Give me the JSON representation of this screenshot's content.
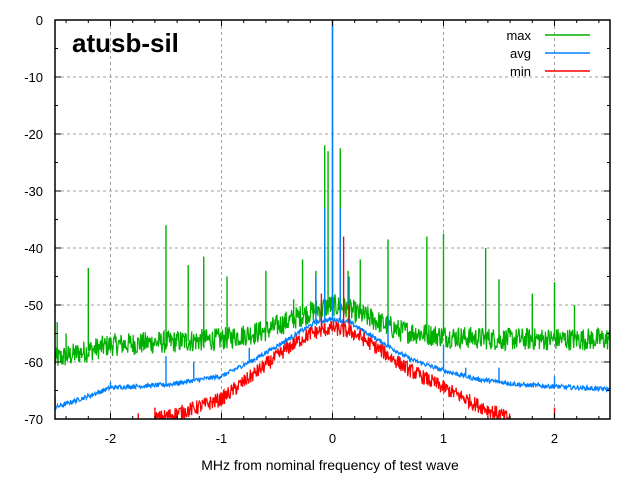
{
  "chart_data": {
    "type": "line",
    "title": "atusb-sil",
    "xlabel": "MHz from nominal frequency of test wave",
    "ylabel": "",
    "xlim": [
      -2.5,
      2.5
    ],
    "ylim": [
      -70,
      0
    ],
    "x_ticks": [
      -2,
      -1,
      0,
      1,
      2
    ],
    "y_ticks": [
      0,
      -10,
      -20,
      -30,
      -40,
      -50,
      -60,
      -70
    ],
    "grid": true,
    "legend_position": "top-right",
    "series": [
      {
        "name": "max",
        "color": "#00b000",
        "baseline": [
          [
            -2.5,
            -59.5
          ],
          [
            -2.2,
            -58
          ],
          [
            -2.0,
            -57
          ],
          [
            -1.5,
            -56.5
          ],
          [
            -1.0,
            -56
          ],
          [
            -0.6,
            -54.5
          ],
          [
            -0.3,
            -52
          ],
          [
            -0.1,
            -50.5
          ],
          [
            0,
            -50
          ],
          [
            0.1,
            -50.5
          ],
          [
            0.3,
            -52
          ],
          [
            0.6,
            -54.5
          ],
          [
            1.0,
            -55.5
          ],
          [
            1.5,
            -56
          ],
          [
            2.0,
            -56
          ],
          [
            2.5,
            -56
          ]
        ],
        "peaks": [
          [
            -2.48,
            -53
          ],
          [
            -2.4,
            -55
          ],
          [
            -2.2,
            -43.5
          ],
          [
            -1.5,
            -36
          ],
          [
            -1.3,
            -43
          ],
          [
            -1.16,
            -41.5
          ],
          [
            -0.95,
            -45
          ],
          [
            -0.6,
            -44
          ],
          [
            -0.35,
            -49
          ],
          [
            -0.27,
            -42
          ],
          [
            -0.15,
            -44
          ],
          [
            -0.07,
            -22
          ],
          [
            -0.04,
            -23
          ],
          [
            0.0,
            0
          ],
          [
            0.07,
            -22.5
          ],
          [
            0.14,
            -44
          ],
          [
            0.25,
            -42
          ],
          [
            0.5,
            -38.5
          ],
          [
            0.85,
            -38
          ],
          [
            1.0,
            -37.5
          ],
          [
            1.38,
            -40
          ],
          [
            1.5,
            -45.5
          ],
          [
            1.8,
            -48
          ],
          [
            2.0,
            -46
          ],
          [
            2.18,
            -50
          ]
        ],
        "noise": 2.0
      },
      {
        "name": "avg",
        "color": "#0080ff",
        "baseline": [
          [
            -2.5,
            -68
          ],
          [
            -2.2,
            -66
          ],
          [
            -2.0,
            -64.5
          ],
          [
            -1.5,
            -64
          ],
          [
            -1.0,
            -62.5
          ],
          [
            -0.7,
            -59.5
          ],
          [
            -0.4,
            -56
          ],
          [
            -0.15,
            -53
          ],
          [
            0,
            -52.5
          ],
          [
            0.15,
            -53
          ],
          [
            0.4,
            -56
          ],
          [
            0.7,
            -59.5
          ],
          [
            1.0,
            -61.5
          ],
          [
            1.3,
            -63
          ],
          [
            1.7,
            -64
          ],
          [
            2.0,
            -64.3
          ],
          [
            2.5,
            -64.8
          ]
        ],
        "peaks": [
          [
            -2.5,
            -66
          ],
          [
            -2.0,
            -63.5
          ],
          [
            -1.5,
            -59
          ],
          [
            -1.25,
            -60
          ],
          [
            -0.75,
            -57.5
          ],
          [
            -0.15,
            -45
          ],
          [
            -0.07,
            -33
          ],
          [
            0.0,
            0
          ],
          [
            0.07,
            -33
          ],
          [
            0.15,
            -45
          ],
          [
            0.5,
            -52
          ],
          [
            1.0,
            -57
          ],
          [
            1.2,
            -61
          ],
          [
            1.5,
            -61
          ],
          [
            2.0,
            -62.5
          ]
        ],
        "noise": 0.4
      },
      {
        "name": "min",
        "color": "#ff0000",
        "baseline": [
          [
            -1.6,
            -70
          ],
          [
            -1.3,
            -68.5
          ],
          [
            -1.0,
            -66.5
          ],
          [
            -0.7,
            -62
          ],
          [
            -0.4,
            -57.5
          ],
          [
            -0.2,
            -55
          ],
          [
            0,
            -54
          ],
          [
            0.2,
            -55
          ],
          [
            0.4,
            -57.5
          ],
          [
            0.7,
            -61.5
          ],
          [
            1.0,
            -64.5
          ],
          [
            1.3,
            -67.5
          ],
          [
            1.6,
            -70
          ]
        ],
        "peaks": [
          [
            -1.75,
            -69
          ],
          [
            -1.6,
            -68
          ],
          [
            -0.1,
            -48
          ],
          [
            0.1,
            -38
          ],
          [
            0.15,
            -50
          ],
          [
            2.0,
            -68
          ]
        ],
        "noise": 1.3
      }
    ]
  }
}
